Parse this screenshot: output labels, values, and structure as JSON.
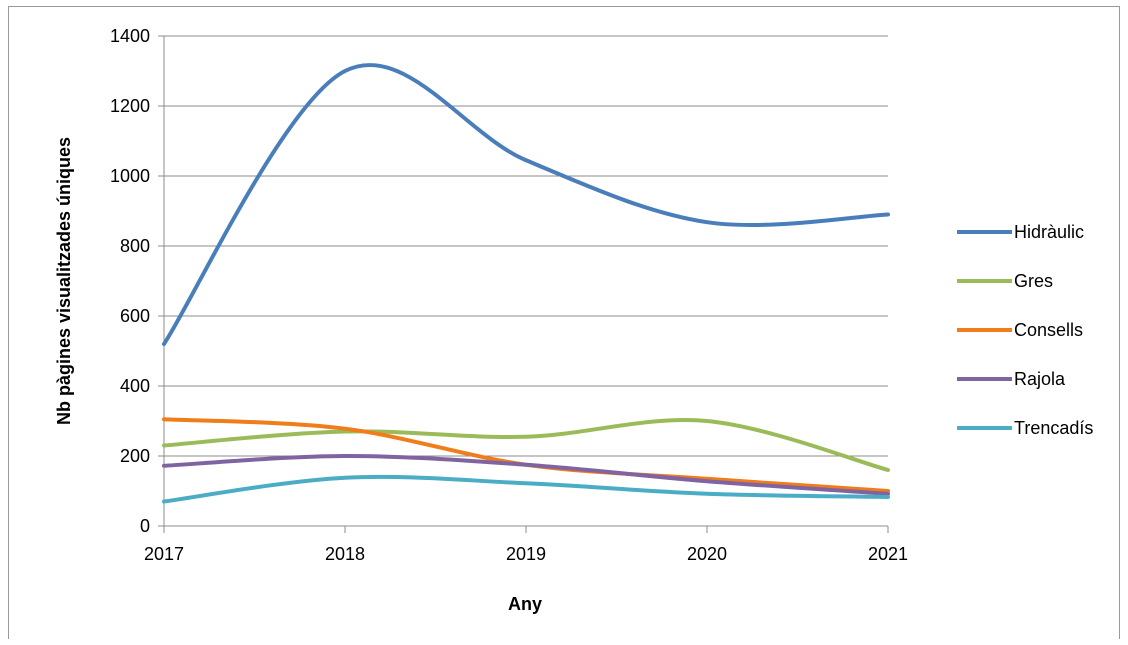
{
  "chart_data": {
    "type": "line",
    "smooth": true,
    "x": [
      2017,
      2018,
      2019,
      2020,
      2021
    ],
    "xlabel": "Any",
    "ylabel": "Nb pàgines visualitzades úniques",
    "ylim": [
      0,
      1400
    ],
    "yticks": [
      0,
      200,
      400,
      600,
      800,
      1000,
      1200,
      1400
    ],
    "xticks": [
      "2017",
      "2018",
      "2019",
      "2020",
      "2021"
    ],
    "grid": "horizontal",
    "legend_position": "right",
    "series": [
      {
        "name": "Hidràulic",
        "color": "#4a7ebb",
        "values": [
          520,
          1300,
          1045,
          868,
          890
        ]
      },
      {
        "name": "Gres",
        "color": "#9bbb59",
        "values": [
          230,
          270,
          255,
          300,
          160
        ]
      },
      {
        "name": "Consells",
        "color": "#f07c1a",
        "values": [
          305,
          278,
          175,
          135,
          100
        ]
      },
      {
        "name": "Rajola",
        "color": "#8064a2",
        "values": [
          172,
          200,
          175,
          128,
          92
        ]
      },
      {
        "name": "Trencadís",
        "color": "#4bacc6",
        "values": [
          70,
          138,
          122,
          92,
          83
        ]
      }
    ]
  }
}
